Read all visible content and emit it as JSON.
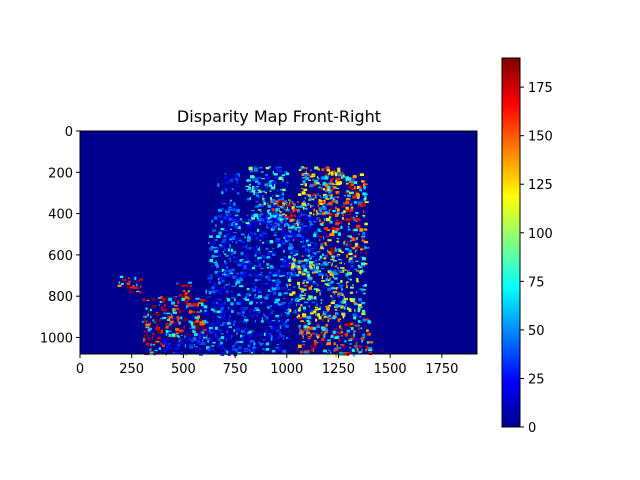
{
  "chart_data": {
    "type": "heatmap",
    "title": "Disparity Map Front-Right",
    "colormap": "jet",
    "xlim": [
      0,
      1920
    ],
    "ylim": [
      1080,
      0
    ],
    "xticks": [
      0,
      250,
      500,
      750,
      1000,
      1250,
      1500,
      1750
    ],
    "yticks": [
      0,
      200,
      400,
      600,
      800,
      1000
    ],
    "colorbar": {
      "min": 0,
      "max": 190,
      "ticks": [
        0,
        25,
        50,
        75,
        100,
        125,
        150,
        175
      ]
    },
    "background_value": 0,
    "regions": [
      {
        "x": [
          660,
          760
        ],
        "y": [
          200,
          430
        ],
        "level": 35
      },
      {
        "x": [
          800,
          1000
        ],
        "y": [
          170,
          450
        ],
        "level": 70
      },
      {
        "x": [
          900,
          1050
        ],
        "y": [
          330,
          470
        ],
        "level": 160
      },
      {
        "x": [
          1050,
          1250
        ],
        "y": [
          170,
          400
        ],
        "level": 130
      },
      {
        "x": [
          1150,
          1380
        ],
        "y": [
          200,
          600
        ],
        "level": 150
      },
      {
        "x": [
          620,
          1150
        ],
        "y": [
          400,
          700
        ],
        "level": 45
      },
      {
        "x": [
          1000,
          1380
        ],
        "y": [
          600,
          900
        ],
        "level": 110
      },
      {
        "x": [
          600,
          1000
        ],
        "y": [
          680,
          1080
        ],
        "level": 40
      },
      {
        "x": [
          1050,
          1400
        ],
        "y": [
          900,
          1080
        ],
        "level": 160
      },
      {
        "x": [
          180,
          290
        ],
        "y": [
          700,
          780
        ],
        "level": 170
      },
      {
        "x": [
          300,
          600
        ],
        "y": [
          800,
          1000
        ],
        "level": 175
      },
      {
        "x": [
          300,
          400
        ],
        "y": [
          1000,
          1080
        ],
        "level": 170
      },
      {
        "x": [
          460,
          530
        ],
        "y": [
          730,
          820
        ],
        "level": 160
      },
      {
        "x": [
          400,
          600
        ],
        "y": [
          980,
          1080
        ],
        "level": 30
      }
    ]
  }
}
